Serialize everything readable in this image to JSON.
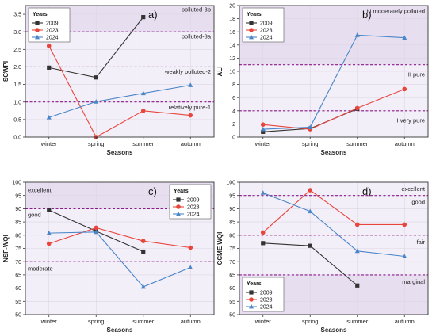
{
  "figure": {
    "series_colors": {
      "2009": "#333333",
      "2023": "#e8453c",
      "2024": "#4a86c8"
    },
    "threshold_color": "#8b1a8b",
    "plot_bg": "#f3eff8",
    "band_bg": "#e7dff0"
  },
  "chart_data": [
    {
      "id": "a",
      "type": "line",
      "panel_label": "a)",
      "ylabel": "SCWPI",
      "xlabel": "Seasons",
      "categories": [
        "winter",
        "spring",
        "summer",
        "autumn"
      ],
      "ylim": [
        0,
        3.75
      ],
      "yticks": [
        0.0,
        0.5,
        1.0,
        1.5,
        2.0,
        2.5,
        3.0,
        3.5
      ],
      "ytick_labels": [
        "0.0",
        "0.5",
        "1.0",
        "1.5",
        "2.0",
        "2.5",
        "3.0",
        "3.5"
      ],
      "grid": true,
      "legend": {
        "title": "Years",
        "placement": "top-left"
      },
      "series": [
        {
          "name": "2009",
          "marker": "square",
          "values": [
            1.98,
            1.7,
            3.42,
            null
          ]
        },
        {
          "name": "2023",
          "marker": "circle",
          "values": [
            2.6,
            0.0,
            0.75,
            0.62
          ]
        },
        {
          "name": "2024",
          "marker": "triangle",
          "values": [
            0.56,
            1.01,
            1.25,
            1.48
          ]
        }
      ],
      "thresholds": [
        1.0,
        2.0,
        3.0
      ],
      "shaded_band": [
        3.0,
        3.75
      ],
      "annotations": [
        {
          "text": "polluted-3b",
          "y": 3.65
        },
        {
          "text": "polluted-3a",
          "y": 2.88
        },
        {
          "text": "weakly polluted-2",
          "y": 1.87
        },
        {
          "text": "relatively pure-1",
          "y": 0.86
        }
      ]
    },
    {
      "id": "b",
      "type": "line",
      "panel_label": "b)",
      "ylabel": "ALI",
      "xlabel": "Seasons",
      "categories": [
        "winter",
        "spring",
        "summer",
        "autumn"
      ],
      "ylim": [
        0,
        20
      ],
      "yticks": [
        0,
        2,
        4,
        6,
        8,
        10,
        12,
        14,
        16,
        18,
        20
      ],
      "ytick_labels": [
        "0",
        "2",
        "4",
        "6",
        "8",
        "10",
        "12",
        "14",
        "16",
        "18",
        "20"
      ],
      "grid": true,
      "legend": {
        "title": "Years",
        "placement": "top-left"
      },
      "series": [
        {
          "name": "2009",
          "marker": "square",
          "values": [
            0.8,
            1.3,
            4.3,
            null
          ]
        },
        {
          "name": "2023",
          "marker": "circle",
          "values": [
            1.9,
            1.2,
            4.4,
            7.3
          ]
        },
        {
          "name": "2024",
          "marker": "triangle",
          "values": [
            1.2,
            1.5,
            15.5,
            15.1
          ]
        }
      ],
      "thresholds": [
        4,
        11
      ],
      "shaded_band": [
        11,
        20
      ],
      "annotations": [
        {
          "text": "III moderately polluted",
          "y": 19.2
        },
        {
          "text": "II pure",
          "y": 9.6
        },
        {
          "text": "I very pure",
          "y": 2.6
        }
      ]
    },
    {
      "id": "c",
      "type": "line",
      "panel_label": "c)",
      "ylabel": "NSF-WQI",
      "xlabel": "Seasons",
      "categories": [
        "winter",
        "spring",
        "summer",
        "autumn"
      ],
      "ylim": [
        50,
        100
      ],
      "yticks": [
        50,
        55,
        60,
        65,
        70,
        75,
        80,
        85,
        90,
        95,
        100
      ],
      "ytick_labels": [
        "50",
        "55",
        "60",
        "65",
        "70",
        "75",
        "80",
        "85",
        "90",
        "95",
        "100"
      ],
      "grid": true,
      "legend": {
        "title": "Years",
        "placement": "top-right"
      },
      "series": [
        {
          "name": "2009",
          "marker": "square",
          "values": [
            89.5,
            81.5,
            73.8,
            null
          ]
        },
        {
          "name": "2023",
          "marker": "circle",
          "values": [
            76.8,
            82.8,
            77.8,
            75.3
          ]
        },
        {
          "name": "2024",
          "marker": "triangle",
          "values": [
            80.8,
            81.2,
            60.5,
            67.8
          ]
        }
      ],
      "thresholds": [
        70,
        90
      ],
      "shaded_band": [
        90,
        100
      ],
      "annotations": [
        {
          "text": "excellent",
          "y": 97.2
        },
        {
          "text": "good",
          "y": 87.8
        },
        {
          "text": "moderate",
          "y": 67.5
        }
      ]
    },
    {
      "id": "d",
      "type": "line",
      "panel_label": "d)",
      "ylabel": "CCME WQI",
      "xlabel": "Seasons",
      "categories": [
        "winter",
        "spring",
        "summer",
        "autumn"
      ],
      "ylim": [
        50,
        100
      ],
      "yticks": [
        50,
        55,
        60,
        65,
        70,
        75,
        80,
        85,
        90,
        95,
        100
      ],
      "ytick_labels": [
        "50",
        "55",
        "60",
        "65",
        "70",
        "75",
        "80",
        "85",
        "90",
        "95",
        "100"
      ],
      "grid": true,
      "legend": {
        "title": "Years",
        "placement": "bottom-left"
      },
      "series": [
        {
          "name": "2009",
          "marker": "square",
          "values": [
            77,
            76,
            61,
            null
          ]
        },
        {
          "name": "2023",
          "marker": "circle",
          "values": [
            81,
            97,
            84,
            84
          ]
        },
        {
          "name": "2024",
          "marker": "triangle",
          "values": [
            96,
            89,
            74,
            72
          ]
        }
      ],
      "thresholds": [
        65,
        80,
        95
      ],
      "shaded_band": [
        50,
        65
      ],
      "annotations": [
        {
          "text": "excellent",
          "y": 97.6
        },
        {
          "text": "good",
          "y": 92.6
        },
        {
          "text": "fair",
          "y": 77.6
        },
        {
          "text": "marginal",
          "y": 62.6
        }
      ]
    }
  ]
}
